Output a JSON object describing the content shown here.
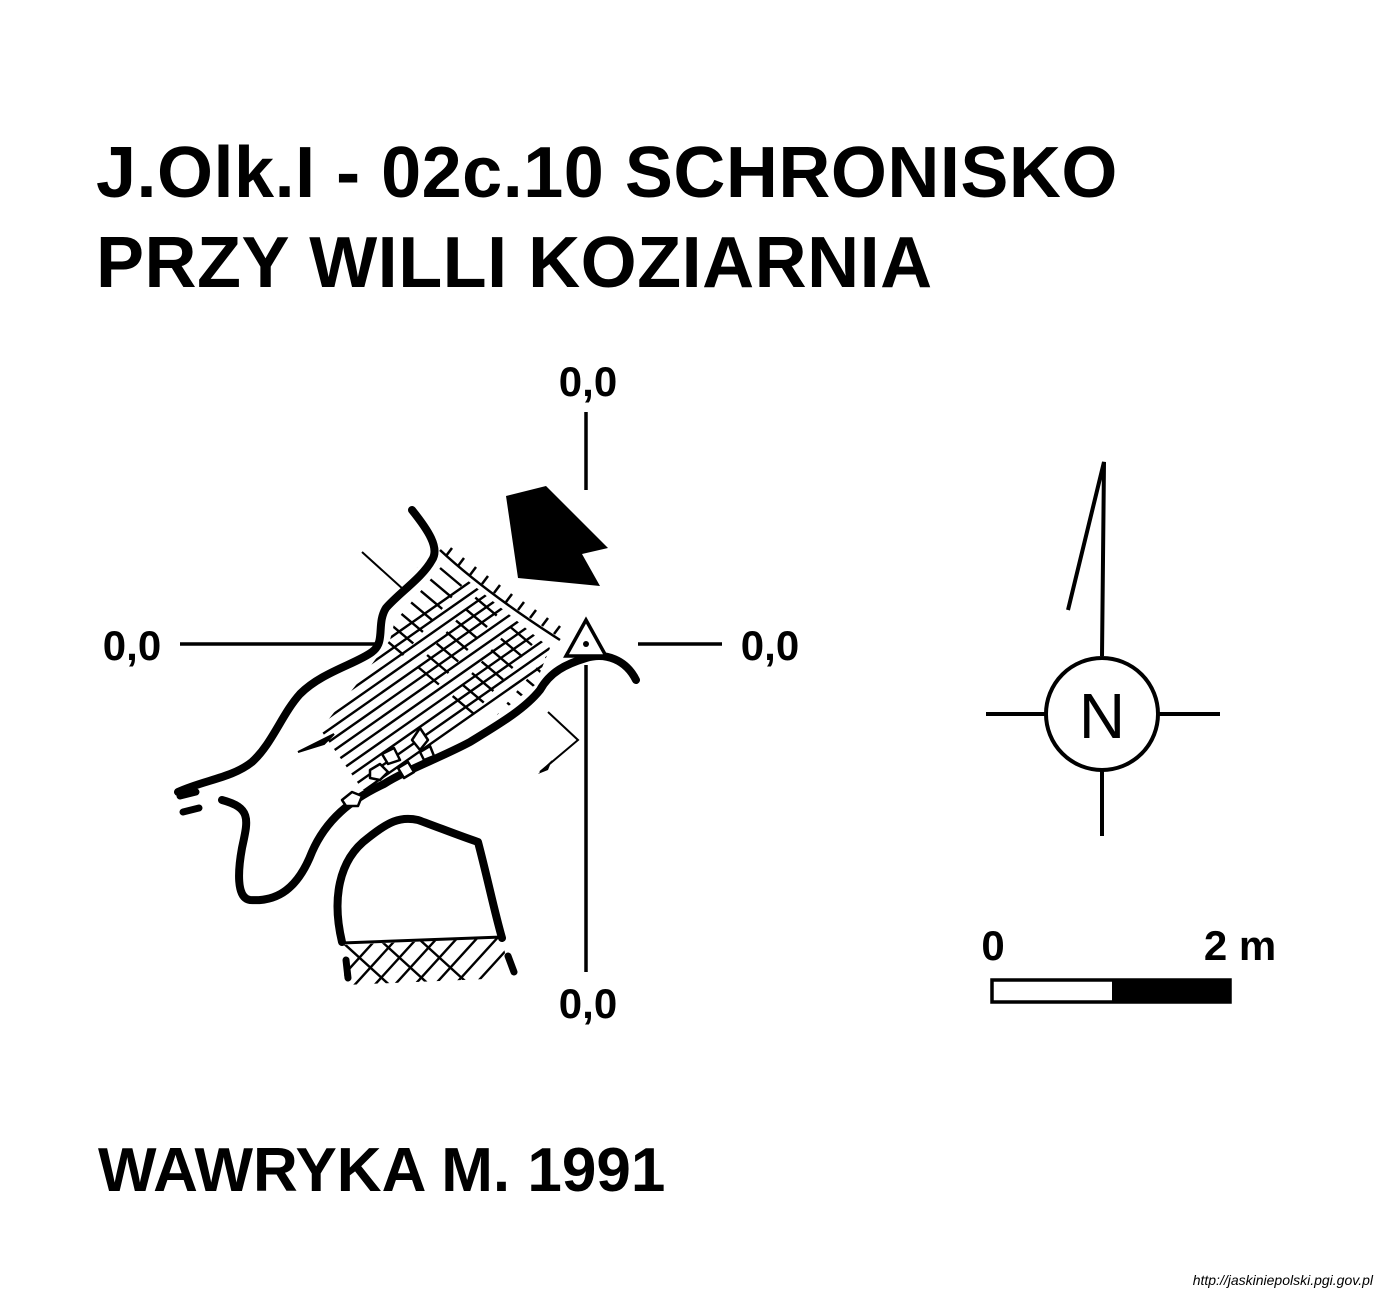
{
  "title": {
    "line1": "J.Olk.I - 02c.10  SCHRONISKO",
    "line2": "PRZY WILLI KOZIARNIA"
  },
  "axes": {
    "top": "0,0",
    "bottom": "0,0",
    "left": "0,0",
    "right": "0,0"
  },
  "compass": {
    "letter": "N"
  },
  "scale": {
    "start": "0",
    "end": "2 m"
  },
  "author": "WAWRYKA M. 1991",
  "source": "http://jaskiniepolski.pgi.gov.pl"
}
